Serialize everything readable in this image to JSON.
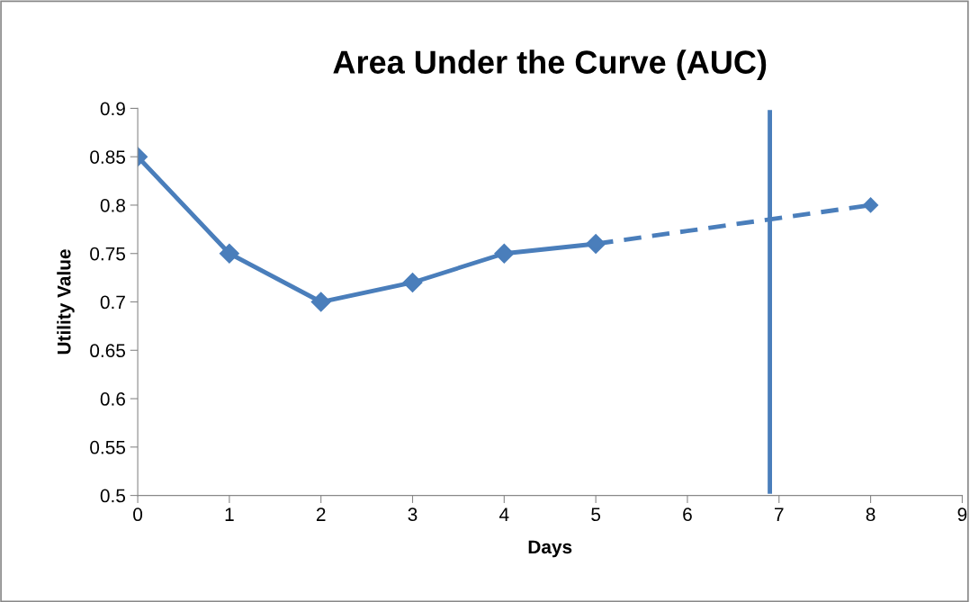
{
  "chart_data": {
    "type": "line",
    "title": "Area Under the Curve (AUC)",
    "xlabel": "Days",
    "ylabel": "Utility Value",
    "series": [
      {
        "color": "#4a7ebb",
        "x": [
          0,
          1,
          2,
          3,
          4,
          5
        ],
        "values": [
          0.85,
          0.75,
          0.7,
          0.72,
          0.75,
          0.76
        ],
        "line_style": "solid",
        "marker": "diamond"
      },
      {
        "color": "#4a7ebb",
        "x": [
          5,
          8
        ],
        "values": [
          0.76,
          0.8
        ],
        "line_style": "dashed",
        "marker": "diamond"
      }
    ],
    "ref_lines": [
      {
        "axis": "x",
        "value": 6.9,
        "color": "#4a7ebb",
        "line_style": "solid"
      }
    ],
    "xlim": [
      0,
      9
    ],
    "xticks": [
      0,
      1,
      2,
      3,
      4,
      5,
      6,
      7,
      8,
      9
    ],
    "ylim": [
      0.5,
      0.9
    ],
    "yticks": [
      {
        "value": 0.5,
        "label": "0.5"
      },
      {
        "value": 0.55,
        "label": "0.55"
      },
      {
        "value": 0.6,
        "label": "0.6"
      },
      {
        "value": 0.65,
        "label": "0.65"
      },
      {
        "value": 0.7,
        "label": "0.7"
      },
      {
        "value": 0.75,
        "label": "0.75"
      },
      {
        "value": 0.8,
        "label": "0.8"
      },
      {
        "value": 0.85,
        "label": "0.85"
      },
      {
        "value": 0.9,
        "label": "0.9"
      }
    ],
    "grid": false,
    "legend": false
  }
}
